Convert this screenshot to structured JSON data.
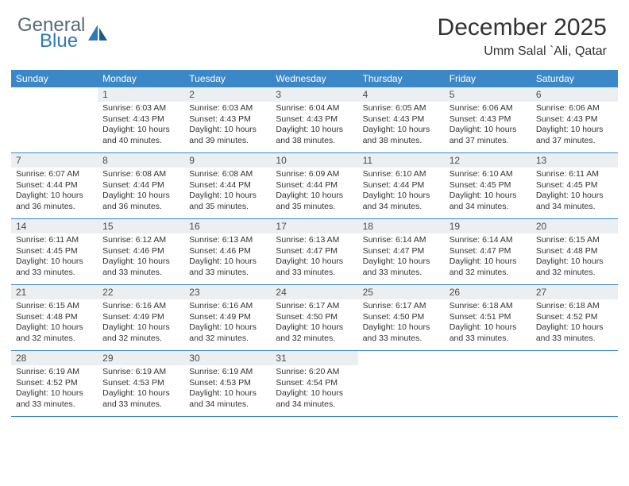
{
  "logo": {
    "text1": "General",
    "text2": "Blue"
  },
  "title": "December 2025",
  "location": "Umm Salal `Ali, Qatar",
  "colors": {
    "header_bg": "#3b87c8",
    "daynum_bg": "#eceff1",
    "border": "#3b87c8",
    "text": "#333333",
    "logo_gray": "#5a6a72",
    "logo_blue": "#2f7ab8"
  },
  "dow": [
    "Sunday",
    "Monday",
    "Tuesday",
    "Wednesday",
    "Thursday",
    "Friday",
    "Saturday"
  ],
  "weeks": [
    [
      {
        "n": "",
        "sr": "",
        "ss": "",
        "dl": ""
      },
      {
        "n": "1",
        "sr": "Sunrise: 6:03 AM",
        "ss": "Sunset: 4:43 PM",
        "dl": "Daylight: 10 hours and 40 minutes."
      },
      {
        "n": "2",
        "sr": "Sunrise: 6:03 AM",
        "ss": "Sunset: 4:43 PM",
        "dl": "Daylight: 10 hours and 39 minutes."
      },
      {
        "n": "3",
        "sr": "Sunrise: 6:04 AM",
        "ss": "Sunset: 4:43 PM",
        "dl": "Daylight: 10 hours and 38 minutes."
      },
      {
        "n": "4",
        "sr": "Sunrise: 6:05 AM",
        "ss": "Sunset: 4:43 PM",
        "dl": "Daylight: 10 hours and 38 minutes."
      },
      {
        "n": "5",
        "sr": "Sunrise: 6:06 AM",
        "ss": "Sunset: 4:43 PM",
        "dl": "Daylight: 10 hours and 37 minutes."
      },
      {
        "n": "6",
        "sr": "Sunrise: 6:06 AM",
        "ss": "Sunset: 4:43 PM",
        "dl": "Daylight: 10 hours and 37 minutes."
      }
    ],
    [
      {
        "n": "7",
        "sr": "Sunrise: 6:07 AM",
        "ss": "Sunset: 4:44 PM",
        "dl": "Daylight: 10 hours and 36 minutes."
      },
      {
        "n": "8",
        "sr": "Sunrise: 6:08 AM",
        "ss": "Sunset: 4:44 PM",
        "dl": "Daylight: 10 hours and 36 minutes."
      },
      {
        "n": "9",
        "sr": "Sunrise: 6:08 AM",
        "ss": "Sunset: 4:44 PM",
        "dl": "Daylight: 10 hours and 35 minutes."
      },
      {
        "n": "10",
        "sr": "Sunrise: 6:09 AM",
        "ss": "Sunset: 4:44 PM",
        "dl": "Daylight: 10 hours and 35 minutes."
      },
      {
        "n": "11",
        "sr": "Sunrise: 6:10 AM",
        "ss": "Sunset: 4:44 PM",
        "dl": "Daylight: 10 hours and 34 minutes."
      },
      {
        "n": "12",
        "sr": "Sunrise: 6:10 AM",
        "ss": "Sunset: 4:45 PM",
        "dl": "Daylight: 10 hours and 34 minutes."
      },
      {
        "n": "13",
        "sr": "Sunrise: 6:11 AM",
        "ss": "Sunset: 4:45 PM",
        "dl": "Daylight: 10 hours and 34 minutes."
      }
    ],
    [
      {
        "n": "14",
        "sr": "Sunrise: 6:11 AM",
        "ss": "Sunset: 4:45 PM",
        "dl": "Daylight: 10 hours and 33 minutes."
      },
      {
        "n": "15",
        "sr": "Sunrise: 6:12 AM",
        "ss": "Sunset: 4:46 PM",
        "dl": "Daylight: 10 hours and 33 minutes."
      },
      {
        "n": "16",
        "sr": "Sunrise: 6:13 AM",
        "ss": "Sunset: 4:46 PM",
        "dl": "Daylight: 10 hours and 33 minutes."
      },
      {
        "n": "17",
        "sr": "Sunrise: 6:13 AM",
        "ss": "Sunset: 4:47 PM",
        "dl": "Daylight: 10 hours and 33 minutes."
      },
      {
        "n": "18",
        "sr": "Sunrise: 6:14 AM",
        "ss": "Sunset: 4:47 PM",
        "dl": "Daylight: 10 hours and 33 minutes."
      },
      {
        "n": "19",
        "sr": "Sunrise: 6:14 AM",
        "ss": "Sunset: 4:47 PM",
        "dl": "Daylight: 10 hours and 32 minutes."
      },
      {
        "n": "20",
        "sr": "Sunrise: 6:15 AM",
        "ss": "Sunset: 4:48 PM",
        "dl": "Daylight: 10 hours and 32 minutes."
      }
    ],
    [
      {
        "n": "21",
        "sr": "Sunrise: 6:15 AM",
        "ss": "Sunset: 4:48 PM",
        "dl": "Daylight: 10 hours and 32 minutes."
      },
      {
        "n": "22",
        "sr": "Sunrise: 6:16 AM",
        "ss": "Sunset: 4:49 PM",
        "dl": "Daylight: 10 hours and 32 minutes."
      },
      {
        "n": "23",
        "sr": "Sunrise: 6:16 AM",
        "ss": "Sunset: 4:49 PM",
        "dl": "Daylight: 10 hours and 32 minutes."
      },
      {
        "n": "24",
        "sr": "Sunrise: 6:17 AM",
        "ss": "Sunset: 4:50 PM",
        "dl": "Daylight: 10 hours and 32 minutes."
      },
      {
        "n": "25",
        "sr": "Sunrise: 6:17 AM",
        "ss": "Sunset: 4:50 PM",
        "dl": "Daylight: 10 hours and 33 minutes."
      },
      {
        "n": "26",
        "sr": "Sunrise: 6:18 AM",
        "ss": "Sunset: 4:51 PM",
        "dl": "Daylight: 10 hours and 33 minutes."
      },
      {
        "n": "27",
        "sr": "Sunrise: 6:18 AM",
        "ss": "Sunset: 4:52 PM",
        "dl": "Daylight: 10 hours and 33 minutes."
      }
    ],
    [
      {
        "n": "28",
        "sr": "Sunrise: 6:19 AM",
        "ss": "Sunset: 4:52 PM",
        "dl": "Daylight: 10 hours and 33 minutes."
      },
      {
        "n": "29",
        "sr": "Sunrise: 6:19 AM",
        "ss": "Sunset: 4:53 PM",
        "dl": "Daylight: 10 hours and 33 minutes."
      },
      {
        "n": "30",
        "sr": "Sunrise: 6:19 AM",
        "ss": "Sunset: 4:53 PM",
        "dl": "Daylight: 10 hours and 34 minutes."
      },
      {
        "n": "31",
        "sr": "Sunrise: 6:20 AM",
        "ss": "Sunset: 4:54 PM",
        "dl": "Daylight: 10 hours and 34 minutes."
      },
      {
        "n": "",
        "sr": "",
        "ss": "",
        "dl": ""
      },
      {
        "n": "",
        "sr": "",
        "ss": "",
        "dl": ""
      },
      {
        "n": "",
        "sr": "",
        "ss": "",
        "dl": ""
      }
    ]
  ]
}
